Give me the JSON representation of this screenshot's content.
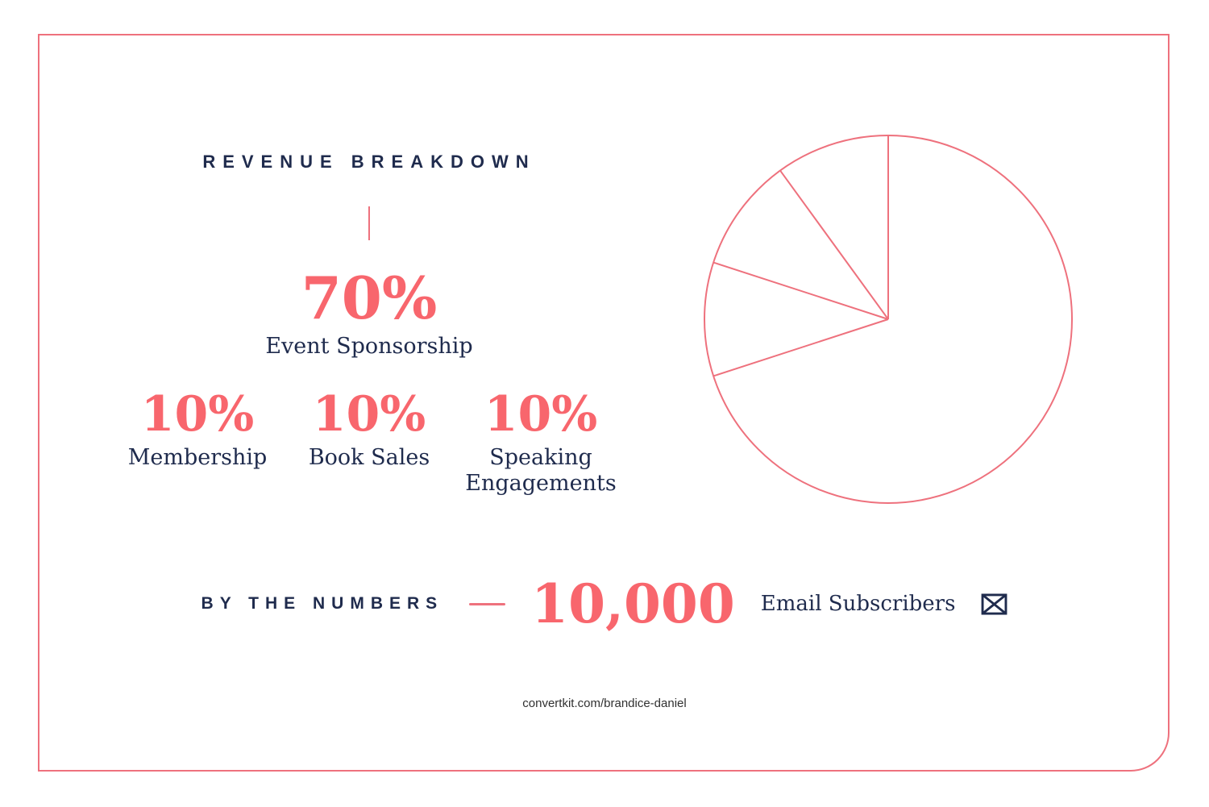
{
  "page": {
    "url_footer": "convertkit.com/brandice-daniel"
  },
  "colors": {
    "accent_text": "#f8666d",
    "accent_line": "#ee717d",
    "navy": "#1f2b4d",
    "footer_text": "#303030",
    "background": "#ffffff"
  },
  "revenue_section": {
    "title": "REVENUE BREAKDOWN",
    "main_stat": {
      "value": "70%",
      "label": "Event Sponsorship"
    },
    "sub_stats": [
      {
        "value": "10%",
        "label": "Membership"
      },
      {
        "value": "10%",
        "label": "Book Sales"
      },
      {
        "value": "10%",
        "label": "Speaking Engagements"
      }
    ]
  },
  "numbers_section": {
    "title": "BY THE NUMBERS",
    "stat_value": "10,000",
    "stat_label": "Email Subscribers",
    "icon": "envelope-icon"
  },
  "chart_data": {
    "type": "pie",
    "title": "Revenue Breakdown",
    "slices": [
      {
        "label": "Event Sponsorship",
        "value": 70
      },
      {
        "label": "Membership",
        "value": 10
      },
      {
        "label": "Book Sales",
        "value": 10
      },
      {
        "label": "Speaking Engagements",
        "value": 10
      }
    ],
    "total": 100,
    "layout": {
      "style": "outline-only",
      "fill": "none",
      "stroke_color": "#ee717d",
      "stroke_width": 2,
      "start_position": "12-oclock",
      "direction": "clockwise",
      "legend": "off",
      "labels_on_chart": "off"
    }
  }
}
